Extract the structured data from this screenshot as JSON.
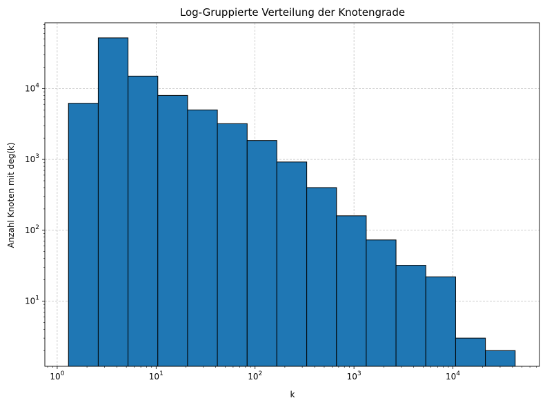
{
  "chart_data": {
    "type": "bar",
    "title": "Log-Gruppierte Verteilung der Knotengrade",
    "xlabel": "k",
    "ylabel": "Anzahl Knoten mit deg(k)",
    "xscale": "log",
    "yscale": "log",
    "grid": true,
    "bar_color": "#1f77b4",
    "edge_color": "#000000",
    "xlim": [
      0.75,
      75000
    ],
    "ylim": [
      1.2,
      85000
    ],
    "x_ticks": [
      {
        "base": "10",
        "exp": "0",
        "value": 1
      },
      {
        "base": "10",
        "exp": "1",
        "value": 10
      },
      {
        "base": "10",
        "exp": "2",
        "value": 100
      },
      {
        "base": "10",
        "exp": "3",
        "value": 1000
      },
      {
        "base": "10",
        "exp": "4",
        "value": 10000
      }
    ],
    "y_ticks": [
      {
        "base": "10",
        "exp": "1",
        "value": 10
      },
      {
        "base": "10",
        "exp": "2",
        "value": 100
      },
      {
        "base": "10",
        "exp": "3",
        "value": 1000
      },
      {
        "base": "10",
        "exp": "4",
        "value": 10000
      }
    ],
    "bins": [
      {
        "x0": 1.3,
        "x1": 2.6,
        "count": 6200
      },
      {
        "x0": 2.6,
        "x1": 5.2,
        "count": 52000
      },
      {
        "x0": 5.2,
        "x1": 10.4,
        "count": 15000
      },
      {
        "x0": 10.4,
        "x1": 20.8,
        "count": 8000
      },
      {
        "x0": 20.8,
        "x1": 41.6,
        "count": 5000
      },
      {
        "x0": 41.6,
        "x1": 83.2,
        "count": 3200
      },
      {
        "x0": 83.2,
        "x1": 166,
        "count": 1850
      },
      {
        "x0": 166,
        "x1": 333,
        "count": 920
      },
      {
        "x0": 333,
        "x1": 666,
        "count": 400
      },
      {
        "x0": 666,
        "x1": 1330,
        "count": 160
      },
      {
        "x0": 1330,
        "x1": 2660,
        "count": 73
      },
      {
        "x0": 2660,
        "x1": 5320,
        "count": 32
      },
      {
        "x0": 5320,
        "x1": 10650,
        "count": 22
      },
      {
        "x0": 10650,
        "x1": 21300,
        "count": 3
      },
      {
        "x0": 21300,
        "x1": 42600,
        "count": 2
      }
    ]
  }
}
